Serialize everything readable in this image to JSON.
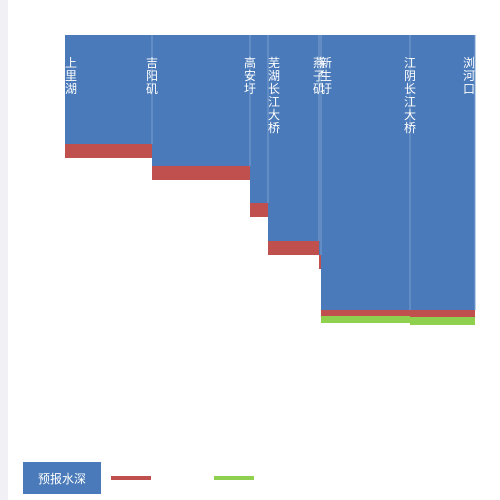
{
  "colors": {
    "depth": "#4a7ab9",
    "red": "#c0504d",
    "green": "#8fd14f",
    "separator": "#7aa0d0",
    "label": "#ffffff"
  },
  "legend": {
    "depth_label": "预报水深"
  },
  "chart_data": {
    "type": "bar",
    "categories": [
      "上里湖",
      "吉阳矶",
      "高安圩",
      "芜湖长江大桥",
      "燕子矶",
      "新生圩",
      "江阴长江大桥",
      "浏河口"
    ],
    "series": [
      {
        "name": "预报水深",
        "values": [
          109,
          131,
          168,
          206,
          220,
          275,
          275,
          275
        ]
      },
      {
        "values": [
          14,
          14,
          14,
          14,
          14,
          6,
          7,
          7
        ]
      },
      {
        "values": [
          0,
          0,
          0,
          0,
          0,
          7,
          8,
          8
        ]
      }
    ]
  }
}
